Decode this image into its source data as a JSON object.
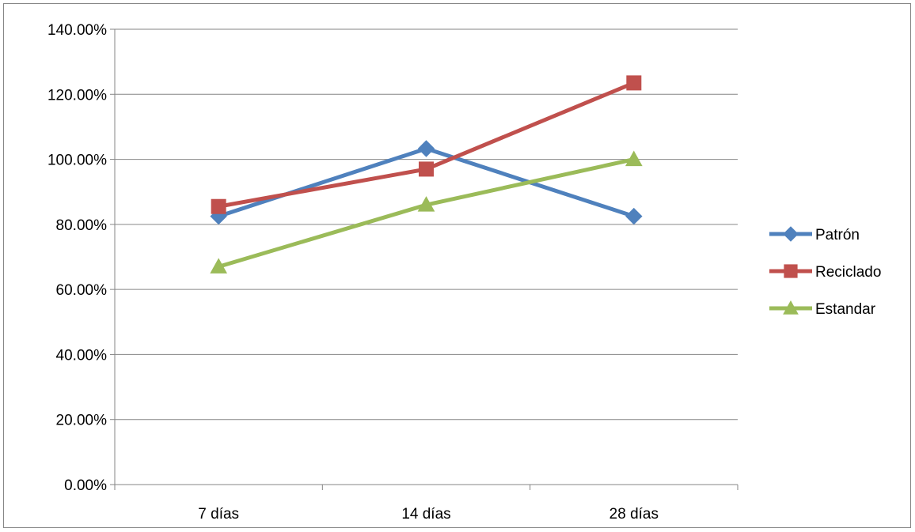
{
  "chart_data": {
    "type": "line",
    "title": "",
    "xlabel": "",
    "ylabel": "",
    "categories": [
      "7 días",
      "14 días",
      "28 días"
    ],
    "ylim": [
      0,
      1.4
    ],
    "y_tick_values": [
      0,
      0.2,
      0.4,
      0.6,
      0.8,
      1.0,
      1.2,
      1.4
    ],
    "y_tick_labels": [
      "0.00%",
      "20.00%",
      "40.00%",
      "60.00%",
      "80.00%",
      "100.00%",
      "120.00%",
      "140.00%"
    ],
    "grid": "horizontal",
    "legend_position": "right",
    "series": [
      {
        "name": "Patrón",
        "values": [
          0.825,
          1.033,
          0.825
        ],
        "color": "#4F81BD",
        "marker": "diamond"
      },
      {
        "name": "Reciclado",
        "values": [
          0.855,
          0.97,
          1.235
        ],
        "color": "#C0504D",
        "marker": "square"
      },
      {
        "name": "Estandar",
        "values": [
          0.67,
          0.86,
          1.0
        ],
        "color": "#9BBB59",
        "marker": "triangle"
      }
    ]
  }
}
